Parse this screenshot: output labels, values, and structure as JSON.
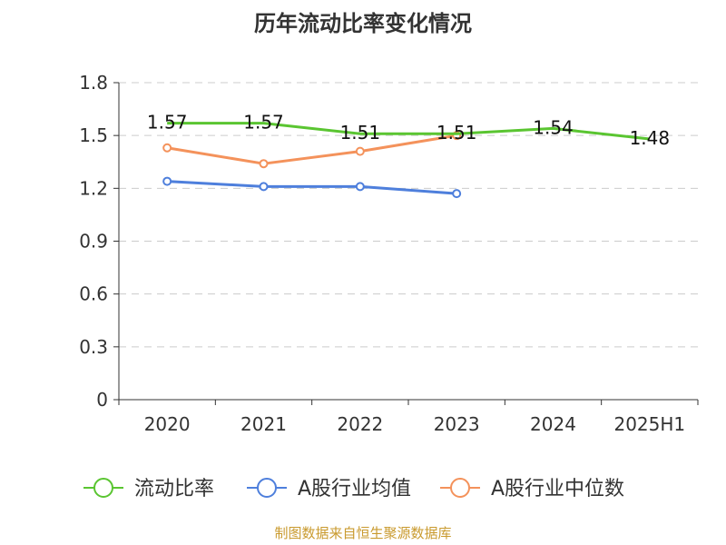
{
  "chart_data": {
    "type": "line",
    "title": "历年流动比率变化情况",
    "categories": [
      "2020",
      "2021",
      "2022",
      "2023",
      "2024",
      "2025H1"
    ],
    "ylim": [
      0,
      1.8
    ],
    "yticks": [
      "0",
      "0.3",
      "0.6",
      "0.9",
      "1.2",
      "1.5",
      "1.8"
    ],
    "grid": true,
    "legend_position": "bottom",
    "series": [
      {
        "name": "流动比率",
        "color": "#5ac531",
        "values": [
          1.57,
          1.57,
          1.51,
          1.51,
          1.54,
          1.48
        ],
        "labels": [
          "1.57",
          "1.57",
          "1.51",
          "1.51",
          "1.54",
          "1.48"
        ]
      },
      {
        "name": "A股行业均值",
        "color": "#4e7fdc",
        "values": [
          1.24,
          1.21,
          1.21,
          1.17,
          null,
          null
        ]
      },
      {
        "name": "A股行业中位数",
        "color": "#f4925b",
        "values": [
          1.43,
          1.34,
          1.41,
          1.5,
          null,
          null
        ]
      }
    ]
  },
  "source": "制图数据来自恒生聚源数据库"
}
